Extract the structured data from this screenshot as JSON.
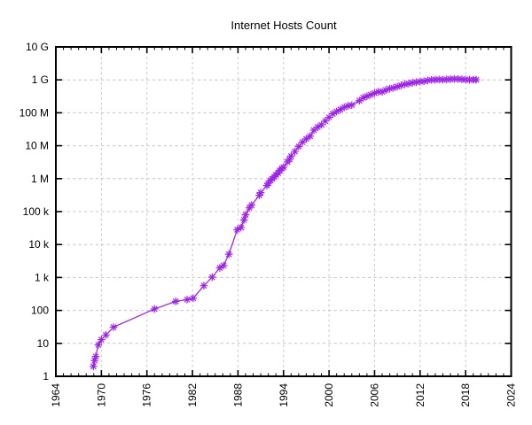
{
  "chart_data": {
    "type": "line",
    "title": "Internet Hosts Count",
    "legend": "none",
    "grid": true,
    "colors": {
      "series": "#a020f0",
      "grid": "#c4c4c4",
      "axis": "#000000",
      "background": "#ffffff"
    },
    "x_axis": {
      "min": 1964,
      "max": 2024,
      "major_ticks": [
        1964,
        1970,
        1976,
        1982,
        1988,
        1994,
        2000,
        2006,
        2012,
        2018,
        2024
      ],
      "minor_step": 1,
      "label_rotation": -90
    },
    "y_axis": {
      "scale": "log",
      "min": 1,
      "max": 10000000000,
      "tick_labels": [
        "1",
        "10",
        "100",
        "1 k",
        "10 k",
        "100 k",
        "1 M",
        "10 M",
        "100 M",
        "1 G",
        "10 G"
      ]
    },
    "series": [
      {
        "name": "Internet hosts",
        "color": "#a020f0",
        "marker": "asterisk",
        "points": [
          [
            1968.95,
            2
          ],
          [
            1969.1,
            3
          ],
          [
            1969.25,
            4
          ],
          [
            1969.6,
            9
          ],
          [
            1970.0,
            13
          ],
          [
            1970.6,
            18
          ],
          [
            1971.6,
            31
          ],
          [
            1977.0,
            111
          ],
          [
            1979.8,
            188
          ],
          [
            1981.3,
            213
          ],
          [
            1982.1,
            235
          ],
          [
            1983.5,
            562
          ],
          [
            1984.6,
            1024
          ],
          [
            1985.6,
            1961
          ],
          [
            1986.1,
            2308
          ],
          [
            1986.8,
            5089
          ],
          [
            1987.9,
            28174
          ],
          [
            1988.4,
            33000
          ],
          [
            1988.8,
            56000
          ],
          [
            1989.0,
            80000
          ],
          [
            1989.5,
            130000
          ],
          [
            1989.8,
            159000
          ],
          [
            1990.8,
            313000
          ],
          [
            1991.0,
            376000
          ],
          [
            1991.8,
            617000
          ],
          [
            1992.0,
            727000
          ],
          [
            1992.3,
            890000
          ],
          [
            1992.5,
            992000
          ],
          [
            1992.8,
            1136000
          ],
          [
            1993.0,
            1313000
          ],
          [
            1993.3,
            1486000
          ],
          [
            1993.5,
            1776000
          ],
          [
            1993.8,
            2056000
          ],
          [
            1994.0,
            2217000
          ],
          [
            1994.5,
            3212000
          ],
          [
            1994.8,
            3864000
          ],
          [
            1995.0,
            4852000
          ],
          [
            1995.5,
            6642000
          ],
          [
            1996.0,
            9472000
          ],
          [
            1996.5,
            12881000
          ],
          [
            1997.0,
            16146000
          ],
          [
            1997.5,
            19540000
          ],
          [
            1998.0,
            29670000
          ],
          [
            1998.5,
            36739000
          ],
          [
            1999.0,
            43230000
          ],
          [
            1999.5,
            56218000
          ],
          [
            2000.0,
            72398092
          ],
          [
            2000.5,
            93047785
          ],
          [
            2001.0,
            109574429
          ],
          [
            2001.5,
            125888197
          ],
          [
            2002.0,
            147344723
          ],
          [
            2002.5,
            162128493
          ],
          [
            2003.0,
            171638297
          ],
          [
            2004.0,
            233101481
          ],
          [
            2004.5,
            285139107
          ],
          [
            2005.0,
            317646084
          ],
          [
            2005.5,
            353284187
          ],
          [
            2006.0,
            394991609
          ],
          [
            2006.5,
            439286364
          ],
          [
            2007.0,
            433193199
          ],
          [
            2007.5,
            489774269
          ],
          [
            2008.0,
            541677360
          ],
          [
            2008.5,
            570937778
          ],
          [
            2009.0,
            625226456
          ],
          [
            2009.5,
            681064561
          ],
          [
            2010.0,
            732740444
          ],
          [
            2010.5,
            768913036
          ],
          [
            2011.0,
            818374269
          ],
          [
            2011.5,
            849869781
          ],
          [
            2012.0,
            888239420
          ],
          [
            2012.5,
            908585739
          ],
          [
            2013.0,
            963518598
          ],
          [
            2013.5,
            996230757
          ],
          [
            2014.0,
            1010251829
          ],
          [
            2014.5,
            1028544414
          ],
          [
            2015.0,
            1012706608
          ],
          [
            2015.5,
            1033836029
          ],
          [
            2016.0,
            1048766623
          ],
          [
            2016.5,
            1062660523
          ],
          [
            2017.0,
            1060000000
          ],
          [
            2017.5,
            1042000000
          ],
          [
            2018.0,
            1014000000
          ],
          [
            2018.5,
            1009000000
          ],
          [
            2019.0,
            1012695272
          ],
          [
            2019.4,
            1010000000
          ]
        ]
      }
    ]
  }
}
